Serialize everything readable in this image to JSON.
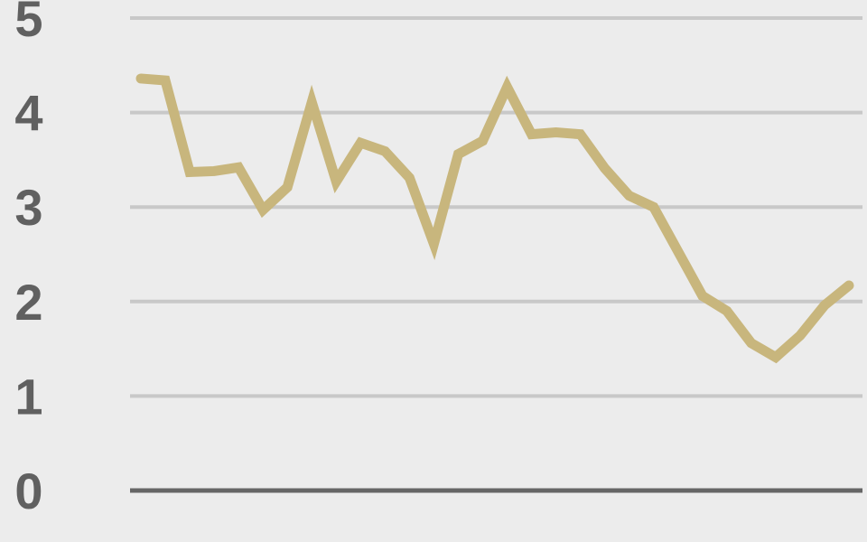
{
  "chart_data": {
    "type": "line",
    "title": "",
    "xlabel": "",
    "ylabel": "",
    "ylim": [
      0,
      5
    ],
    "yticks": [
      "0",
      "1",
      "2",
      "3",
      "4",
      "5"
    ],
    "grid": true,
    "x": [
      1,
      2,
      3,
      4,
      5,
      6,
      7,
      8,
      9,
      10,
      11,
      12,
      13,
      14,
      15,
      16,
      17,
      18,
      19,
      20,
      21,
      22,
      23,
      24,
      25,
      26,
      27,
      28,
      29,
      30
    ],
    "series": [
      {
        "color": "#c8b67d",
        "values": [
          4.36,
          4.34,
          3.37,
          3.38,
          3.42,
          2.97,
          3.21,
          4.11,
          3.27,
          3.68,
          3.59,
          3.31,
          2.61,
          3.56,
          3.7,
          4.27,
          3.77,
          3.79,
          3.77,
          3.41,
          3.12,
          3.0,
          2.53,
          2.06,
          1.9,
          1.56,
          1.41,
          1.64,
          1.96,
          2.17
        ]
      }
    ],
    "colors": {
      "background": "#ececec",
      "grid": "#c8c8c8",
      "axis": "#666666",
      "tick_text": "#606060"
    }
  }
}
